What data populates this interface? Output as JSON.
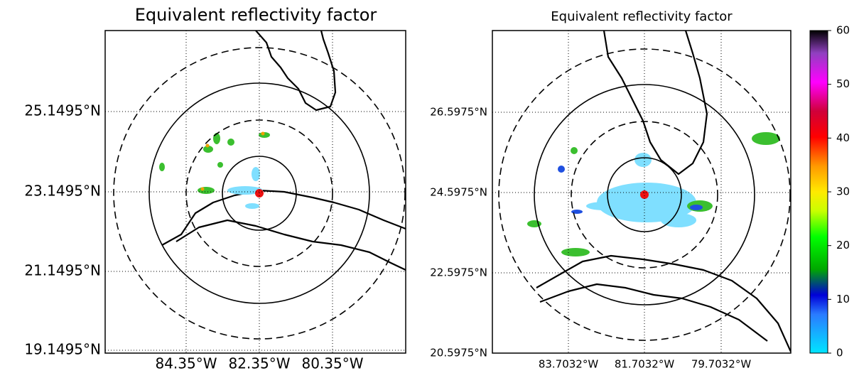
{
  "panels": [
    {
      "title": "Equivalent reflectivity factor",
      "lat_labels": [
        "25.1495°N",
        "23.1495°N",
        "21.1495°N",
        "19.1495°N"
      ],
      "lon_labels": [
        "84.35°W",
        "82.35°W",
        "80.35°W"
      ]
    },
    {
      "title": "Equivalent reflectivity factor",
      "lat_labels": [
        "26.5975°N",
        "24.5975°N",
        "22.5975°N",
        "20.5975°N"
      ],
      "lon_labels": [
        "83.7032°W",
        "81.7032°W",
        "79.7032°W"
      ]
    }
  ],
  "colorbar": {
    "lim": [
      0,
      60
    ],
    "ticks": [
      0,
      10,
      20,
      30,
      40,
      50,
      60
    ]
  }
}
